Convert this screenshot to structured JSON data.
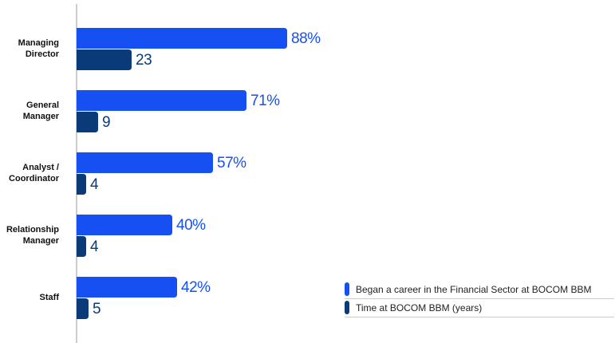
{
  "chart_data": {
    "type": "bar",
    "orientation": "horizontal",
    "categories": [
      "Managing Director",
      "General Manager",
      "Analyst / Coordinator",
      "Relationship Manager",
      "Staff"
    ],
    "series": [
      {
        "name": "Began a career in the Financial Sector at BOCOM BBM",
        "color": "#1650f2",
        "values": [
          88,
          71,
          57,
          40,
          42
        ],
        "value_labels": [
          "88%",
          "71%",
          "57%",
          "40%",
          "42%"
        ]
      },
      {
        "name": "Time at BOCOM BBM (years)",
        "color": "#0b3a78",
        "values": [
          23,
          9,
          4,
          4,
          5
        ]
      }
    ],
    "legend": "lower right",
    "grid": false
  }
}
